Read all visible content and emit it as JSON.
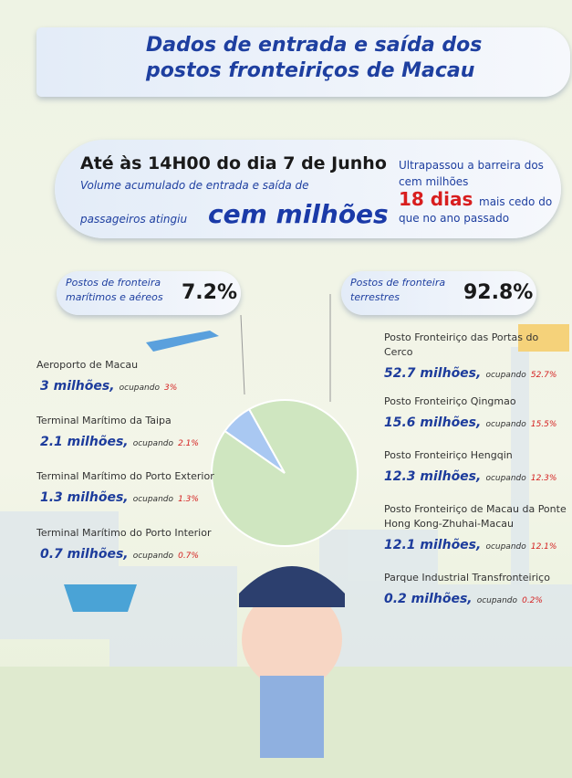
{
  "header": {
    "title": "Dados de entrada e saída dos postos fronteiriços de Macau"
  },
  "banner": {
    "date": "Até às 14H00 do dia 7 de Junho",
    "line1": "Volume acumulado de entrada e saída de",
    "line2": "passageiros atingiu",
    "highlight": "cem milhões",
    "note1": "Ultrapassou a barreira dos cem milhões",
    "days": "18 dias",
    "note2": "mais cedo do que no ano passado"
  },
  "chart_data": {
    "type": "pie",
    "categories": [
      "Postos de fronteira marítimos e aéreos",
      "Postos de fronteira terrestres"
    ],
    "values": [
      7.2,
      92.8
    ],
    "value_labels": [
      "7.2%",
      "92.8%"
    ],
    "colors": [
      "#a9c8f2",
      "#cfe6c0"
    ]
  },
  "left": [
    {
      "name": "Aeroporto de Macau",
      "amount": "3 milhões,",
      "word": "ocupando",
      "share": "3%"
    },
    {
      "name": "Terminal Marítimo da Taipa",
      "amount": "2.1 milhões,",
      "word": "ocupando",
      "share": "2.1%"
    },
    {
      "name": "Terminal Marítimo do Porto Exterior",
      "amount": "1.3 milhões,",
      "word": "ocupando",
      "share": "1.3%"
    },
    {
      "name": "Terminal Marítimo do Porto Interior",
      "amount": "0.7 milhões,",
      "word": "ocupando",
      "share": "0.7%"
    }
  ],
  "right": [
    {
      "name": "Posto Fronteiriço das Portas do Cerco",
      "amount": "52.7 milhões,",
      "word": "ocupando",
      "share": "52.7%"
    },
    {
      "name": "Posto Fronteiriço Qingmao",
      "amount": "15.6 milhões,",
      "word": "ocupando",
      "share": "15.5%"
    },
    {
      "name": "Posto Fronteiriço Hengqin",
      "amount": "12.3 milhões,",
      "word": "ocupando",
      "share": "12.3%"
    },
    {
      "name": "Posto Fronteiriço de Macau da Ponte Hong Kong-Zhuhai-Macau",
      "amount": "12.1 milhões,",
      "word": "ocupando",
      "share": "12.1%"
    },
    {
      "name": "Parque Industrial Transfronteiriço",
      "amount": "0.2 milhões,",
      "word": "ocupando",
      "share": "0.2%"
    }
  ]
}
